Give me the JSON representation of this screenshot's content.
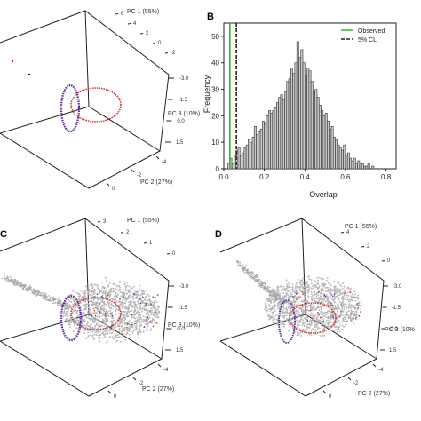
{
  "colors": {
    "observed": "#2db82d",
    "cl": "#222222",
    "ellipse_a": "#5a2a9a",
    "ellipse_b": "#d23030",
    "cloud": "#b5b5b5",
    "bars": "#c9c9c9"
  },
  "panels_3d": [
    {
      "letter": "",
      "pc1": "PC 1 (55%)",
      "pc2": "PC 2 (27%)",
      "pc3": "PC 3 (10%)",
      "pc1_ticks": [
        "6",
        "4",
        "2",
        "0",
        "-2"
      ],
      "pc3_ticks": [
        "-3.0",
        "-1.5",
        "0.0",
        "1.5"
      ],
      "pc2_ticks": [
        "-4",
        "-2",
        "0"
      ],
      "cloud": false
    },
    {
      "letter": "C",
      "pc1": "PC 1 (55%)",
      "pc2": "PC 2 (27%)",
      "pc3": "PC 3 (10%)",
      "pc1_ticks": [
        "3",
        "2",
        "1",
        "0"
      ],
      "pc3_ticks": [
        "-3.0",
        "-1.5",
        "0.0",
        "1.5"
      ],
      "pc2_ticks": [
        "-4",
        "-2",
        "0"
      ],
      "cloud": true
    },
    {
      "letter": "D",
      "pc1": "PC 1 (55%)",
      "pc2": "PC 2 (27%)",
      "pc3": "PC 3 (10%",
      "pc1_ticks": [
        "4",
        "2",
        "0"
      ],
      "pc3_ticks": [
        "-3.0",
        "-1.5",
        "0.0",
        "1.5"
      ],
      "pc2_ticks": [
        "-4",
        "-2",
        "0"
      ],
      "cloud": true
    }
  ],
  "chart_data": {
    "type": "bar",
    "panel_label": "B",
    "xlabel": "Overlap",
    "ylabel": "Frequency",
    "xlim": [
      0,
      0.85
    ],
    "ylim": [
      0,
      55
    ],
    "xticks": [
      "0.0",
      "0.2",
      "0.4",
      "0.6",
      "0.8"
    ],
    "yticks": [
      "0",
      "10",
      "20",
      "30",
      "40",
      "50"
    ],
    "bin_width": 0.01,
    "bin_start": 0.0,
    "values": [
      0,
      0,
      2,
      4,
      2,
      5,
      7,
      8,
      5,
      6,
      8,
      9,
      11,
      10,
      12,
      16,
      13,
      14,
      15,
      18,
      17,
      20,
      22,
      21,
      22,
      23,
      25,
      27,
      28,
      26,
      29,
      33,
      34,
      38,
      36,
      40,
      48,
      42,
      45,
      40,
      35,
      38,
      37,
      33,
      29,
      30,
      27,
      24,
      22,
      20,
      21,
      18,
      15,
      16,
      12,
      11,
      9,
      8,
      7,
      9,
      5,
      6,
      4,
      3,
      4,
      2,
      3,
      2,
      2,
      1,
      1,
      2,
      0,
      1,
      0,
      0,
      0,
      0
    ],
    "vlines": [
      {
        "name": "Observed",
        "x": 0.03,
        "style": "solid"
      },
      {
        "name": "5% CL",
        "x": 0.062,
        "style": "dashed"
      }
    ],
    "legend_position": "top-right"
  }
}
